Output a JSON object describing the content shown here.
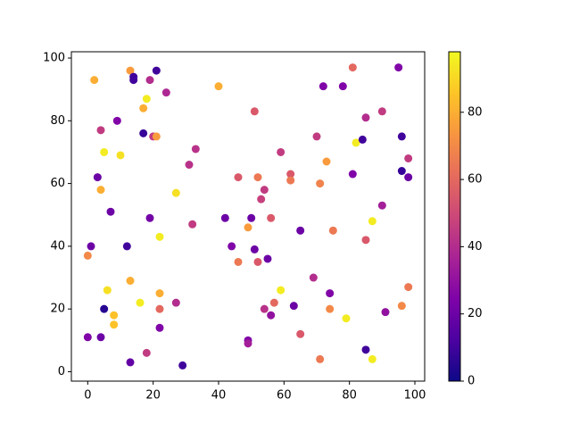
{
  "chart_data": {
    "type": "scatter",
    "cmap": "plasma",
    "x": [
      2,
      13,
      21,
      14,
      14,
      19,
      24,
      18,
      17,
      40,
      51,
      72,
      78,
      81,
      95,
      85,
      90,
      4,
      9,
      17,
      20,
      21,
      33,
      5,
      10,
      31,
      59,
      70,
      82,
      84,
      96,
      98,
      73,
      3,
      4,
      7,
      46,
      52,
      54,
      53,
      62,
      62,
      71,
      81,
      96,
      98,
      90,
      27,
      19,
      32,
      42,
      50,
      49,
      56,
      65,
      75,
      87,
      85,
      1,
      12,
      22,
      44,
      51,
      55,
      0,
      46,
      52,
      69,
      74,
      98,
      6,
      13,
      22,
      59,
      5,
      8,
      8,
      16,
      22,
      27,
      54,
      57,
      63,
      56,
      74,
      79,
      96,
      91,
      0,
      4,
      22,
      49,
      49,
      65,
      18,
      13,
      29,
      71,
      85,
      87
    ],
    "y": [
      93,
      96,
      96,
      94,
      93,
      93,
      89,
      87,
      84,
      91,
      83,
      91,
      91,
      97,
      97,
      81,
      83,
      77,
      80,
      76,
      75,
      75,
      71,
      70,
      69,
      66,
      70,
      75,
      73,
      74,
      75,
      68,
      67,
      62,
      58,
      51,
      62,
      62,
      58,
      55,
      63,
      61,
      60,
      63,
      64,
      62,
      53,
      57,
      49,
      47,
      49,
      49,
      46,
      49,
      45,
      45,
      48,
      42,
      40,
      40,
      43,
      40,
      39,
      36,
      37,
      35,
      35,
      30,
      25,
      27,
      26,
      29,
      25,
      26,
      20,
      18,
      15,
      22,
      20,
      22,
      20,
      22,
      21,
      18,
      20,
      17,
      21,
      19,
      11,
      11,
      14,
      10,
      9,
      12,
      6,
      3,
      2,
      4,
      7,
      4
    ],
    "c": [
      80,
      75,
      10,
      10,
      10,
      40,
      38,
      95,
      80,
      80,
      55,
      25,
      25,
      60,
      25,
      40,
      45,
      45,
      25,
      8,
      45,
      75,
      42,
      95,
      92,
      42,
      45,
      45,
      95,
      10,
      10,
      45,
      75,
      20,
      80,
      20,
      55,
      65,
      45,
      47,
      55,
      65,
      68,
      25,
      8,
      20,
      35,
      92,
      22,
      45,
      20,
      20,
      75,
      55,
      20,
      65,
      95,
      55,
      20,
      10,
      95,
      25,
      20,
      20,
      70,
      65,
      55,
      40,
      25,
      65,
      92,
      80,
      80,
      95,
      5,
      85,
      85,
      95,
      60,
      40,
      42,
      60,
      20,
      30,
      70,
      95,
      70,
      30,
      25,
      20,
      25,
      25,
      35,
      55,
      45,
      18,
      10,
      65,
      10,
      95
    ],
    "xlim": [
      -5,
      103
    ],
    "ylim": [
      -3,
      102
    ],
    "xticks": [
      0,
      20,
      40,
      60,
      80,
      100
    ],
    "yticks": [
      0,
      20,
      40,
      60,
      80,
      100
    ],
    "clim": [
      0,
      98
    ],
    "cticks": [
      0,
      20,
      40,
      60,
      80
    ]
  }
}
